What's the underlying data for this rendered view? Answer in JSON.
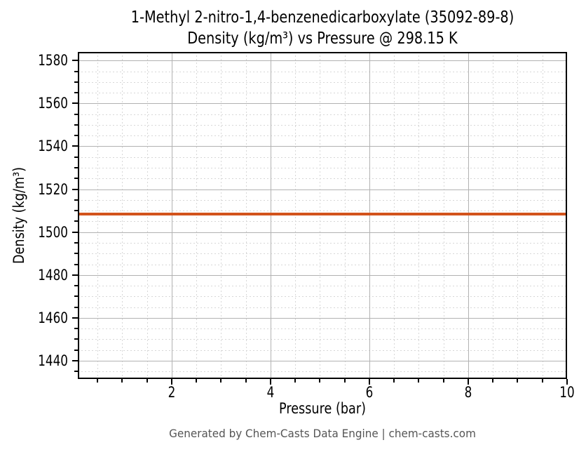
{
  "chart_data": {
    "type": "line",
    "title_line1": "1-Methyl 2-nitro-1,4-benzenedicarboxylate (35092-89-8)",
    "title_line2": "Density (kg/m³) vs Pressure @ 298.15 K",
    "xlabel": "Pressure (bar)",
    "ylabel": "Density (kg/m³)",
    "xlim": [
      0.1,
      10
    ],
    "ylim": [
      1431.5,
      1584
    ],
    "x_major_ticks": [
      2,
      4,
      6,
      8,
      10
    ],
    "x_minor_step": 0.5,
    "y_major_ticks": [
      1440,
      1460,
      1480,
      1500,
      1520,
      1540,
      1560,
      1580
    ],
    "y_minor_step": 5,
    "grid": true,
    "legend": "none",
    "series": [
      {
        "name": "Density",
        "color": "#d2531c",
        "x": [
          0.1,
          10
        ],
        "values": [
          1508.5,
          1508.5
        ]
      }
    ],
    "colors": {
      "line": "#d2531c",
      "major_grid": "#b2b2b2",
      "minor_grid": "#d7d7d7",
      "spine": "#000000",
      "footer_text": "#555555"
    }
  },
  "footer": {
    "text": "Generated by Chem-Casts Data Engine | chem-casts.com"
  }
}
